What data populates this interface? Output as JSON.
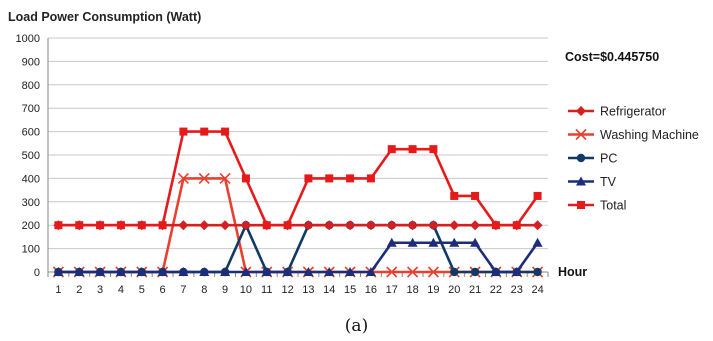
{
  "header": {
    "title": "Load Power Consumption (Watt)"
  },
  "annotation": {
    "cost": "Cost=$0.445750"
  },
  "caption": "(a)",
  "chart_data": {
    "type": "line",
    "title": "Load Power Consumption (Watt)",
    "xlabel": "Hour",
    "ylabel": "",
    "x": [
      1,
      2,
      3,
      4,
      5,
      6,
      7,
      8,
      9,
      10,
      11,
      12,
      13,
      14,
      15,
      16,
      17,
      18,
      19,
      20,
      21,
      22,
      23,
      24
    ],
    "ylim": [
      0,
      1000
    ],
    "yticks": [
      0,
      100,
      200,
      300,
      400,
      500,
      600,
      700,
      800,
      900,
      1000
    ],
    "grid": true,
    "legend_position": "right",
    "series": [
      {
        "name": "Refrigerator",
        "color": "#d42020",
        "marker": "diamond",
        "values": [
          200,
          200,
          200,
          200,
          200,
          200,
          200,
          200,
          200,
          200,
          200,
          200,
          200,
          200,
          200,
          200,
          200,
          200,
          200,
          200,
          200,
          200,
          200,
          200
        ]
      },
      {
        "name": "Washing Machine",
        "color": "#e8412f",
        "marker": "x",
        "values": [
          0,
          0,
          0,
          0,
          0,
          0,
          400,
          400,
          400,
          0,
          0,
          0,
          0,
          0,
          0,
          0,
          0,
          0,
          0,
          0,
          0,
          0,
          0,
          0
        ]
      },
      {
        "name": "PC",
        "color": "#103a66",
        "marker": "circle",
        "values": [
          0,
          0,
          0,
          0,
          0,
          0,
          0,
          0,
          0,
          200,
          0,
          0,
          200,
          200,
          200,
          200,
          200,
          200,
          200,
          0,
          0,
          0,
          0,
          0
        ]
      },
      {
        "name": "TV",
        "color": "#1d2d7a",
        "marker": "triangle",
        "values": [
          0,
          0,
          0,
          0,
          0,
          0,
          0,
          0,
          0,
          0,
          0,
          0,
          0,
          0,
          0,
          0,
          125,
          125,
          125,
          125,
          125,
          0,
          0,
          125
        ]
      },
      {
        "name": "Total",
        "color": "#e51a1a",
        "marker": "square",
        "values": [
          200,
          200,
          200,
          200,
          200,
          200,
          600,
          600,
          600,
          400,
          200,
          200,
          400,
          400,
          400,
          400,
          525,
          525,
          525,
          325,
          325,
          200,
          200,
          325
        ]
      }
    ]
  }
}
